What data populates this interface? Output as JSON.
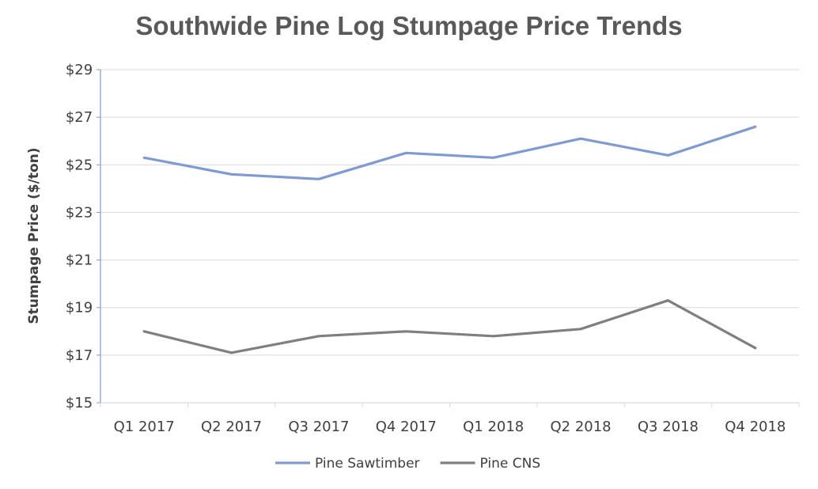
{
  "chart_data": {
    "type": "line",
    "title": "Southwide Pine Log Stumpage Price Trends",
    "xlabel": "",
    "ylabel": "Stumpage Price ($/ton)",
    "categories": [
      "Q1 2017",
      "Q2 2017",
      "Q3 2017",
      "Q4 2017",
      "Q1 2018",
      "Q2 2018",
      "Q3 2018",
      "Q4 2018"
    ],
    "ylim": [
      15,
      29
    ],
    "yticks": [
      15,
      17,
      19,
      21,
      23,
      25,
      27,
      29
    ],
    "ytick_labels": [
      "$15",
      "$17",
      "$19",
      "$21",
      "$23",
      "$25",
      "$27",
      "$29"
    ],
    "grid": true,
    "legend_position": "bottom",
    "series": [
      {
        "name": "Pine Sawtimber",
        "color": "#7F9AD0",
        "values": [
          25.3,
          24.6,
          24.4,
          25.5,
          25.3,
          26.1,
          25.4,
          26.6
        ]
      },
      {
        "name": "Pine CNS",
        "color": "#7F7F7F",
        "values": [
          18.0,
          17.1,
          17.8,
          18.0,
          17.8,
          18.1,
          19.3,
          17.3
        ]
      }
    ]
  }
}
